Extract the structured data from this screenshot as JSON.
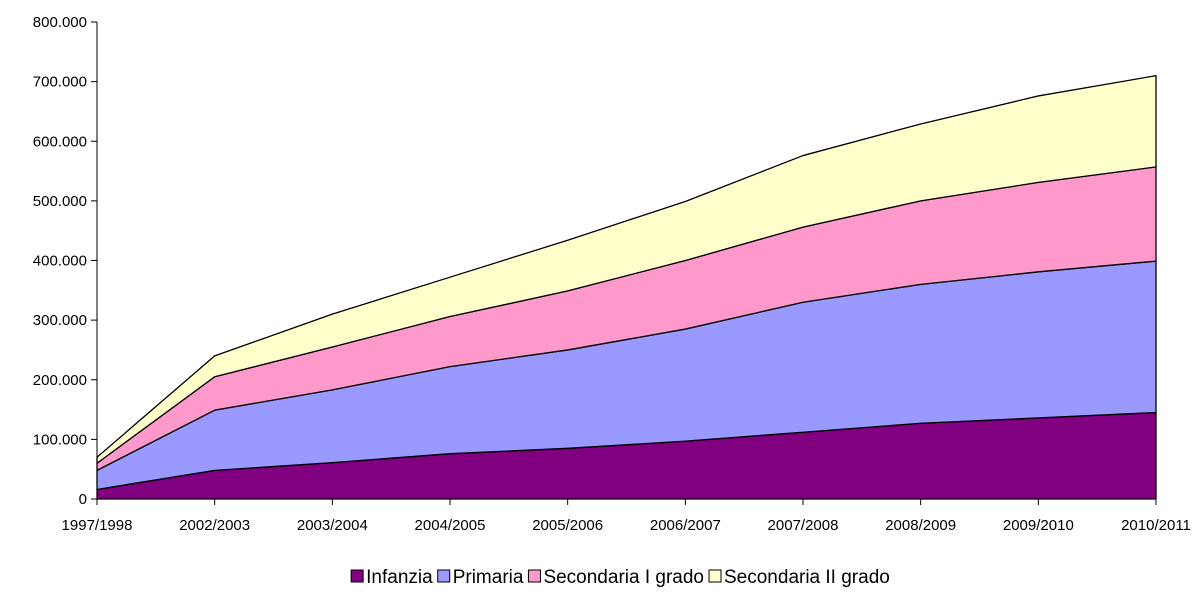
{
  "chart_data": {
    "type": "area",
    "stacked": true,
    "title": "",
    "xlabel": "",
    "ylabel": "",
    "categories": [
      "1997/1998",
      "2002/2003",
      "2003/2004",
      "2004/2005",
      "2005/2006",
      "2006/2007",
      "2007/2008",
      "2008/2009",
      "2009/2010",
      "2010/2011"
    ],
    "series": [
      {
        "name": "Infanzia",
        "color": "#800080",
        "values": [
          16000,
          48000,
          61000,
          76000,
          85000,
          97000,
          112000,
          127000,
          136000,
          145000
        ]
      },
      {
        "name": "Primaria",
        "color": "#9999ff",
        "values": [
          32000,
          101000,
          122000,
          146000,
          165000,
          188000,
          218000,
          233000,
          245000,
          254000
        ]
      },
      {
        "name": "Secondaria I grado",
        "color": "#ff99cc",
        "values": [
          12000,
          56000,
          72000,
          84000,
          99000,
          115000,
          126000,
          140000,
          150000,
          158000
        ]
      },
      {
        "name": "Secondaria II grado",
        "color": "#ffffcc",
        "values": [
          10000,
          35000,
          55000,
          66000,
          85000,
          99000,
          120000,
          129000,
          145000,
          153000
        ]
      }
    ],
    "ylim": [
      0,
      800000
    ],
    "y_ticks": [
      0,
      100000,
      200000,
      300000,
      400000,
      500000,
      600000,
      700000,
      800000
    ],
    "y_tick_labels": [
      "0",
      "100.000",
      "200.000",
      "300.000",
      "400.000",
      "500.000",
      "600.000",
      "700.000",
      "800.000"
    ],
    "grid": false,
    "legend_position": "bottom"
  }
}
